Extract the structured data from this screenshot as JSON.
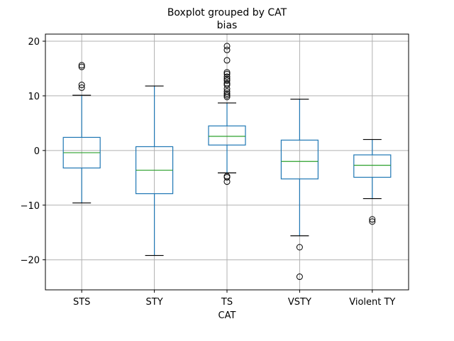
{
  "chart_data": {
    "type": "boxplot",
    "title": "Boxplot grouped by CAT",
    "subtitle": "bias",
    "xlabel": "CAT",
    "ylabel": "",
    "ylim": [
      -25.5,
      21.3
    ],
    "yticks": [
      20,
      10,
      0,
      -10,
      -20
    ],
    "ytick_labels": [
      "20",
      "10",
      "0",
      "−10",
      "−20"
    ],
    "grid": true,
    "colors": {
      "box": "#1f77b4",
      "median": "#2ca02c",
      "whisker_cap": "#000000",
      "grid": "#b0b0b0",
      "axes": "#000000"
    },
    "categories": [
      "STS",
      "STY",
      "TS",
      "VSTY",
      "Violent TY"
    ],
    "boxes": [
      {
        "category": "STS",
        "whislo": -9.6,
        "q1": -3.2,
        "med": -0.4,
        "q3": 2.4,
        "whishi": 10.1,
        "fliers": [
          15.6,
          15.3,
          12.0,
          11.5
        ]
      },
      {
        "category": "STY",
        "whislo": -19.2,
        "q1": -7.9,
        "med": -3.6,
        "q3": 0.7,
        "whishi": 11.8,
        "fliers": []
      },
      {
        "category": "TS",
        "whislo": -4.1,
        "q1": 1.0,
        "med": 2.6,
        "q3": 4.5,
        "whishi": 8.7,
        "fliers": [
          19.1,
          18.4,
          16.5,
          14.3,
          14.0,
          13.5,
          13.1,
          12.8,
          12.3,
          12.0,
          11.3,
          10.8,
          10.4,
          10.1,
          9.8,
          -4.7,
          -4.9,
          -5.7
        ]
      },
      {
        "category": "VSTY",
        "whislo": -15.6,
        "q1": -5.2,
        "med": -2.0,
        "q3": 1.9,
        "whishi": 9.4,
        "fliers": [
          -17.7,
          -23.1
        ]
      },
      {
        "category": "Violent TY",
        "whislo": -8.8,
        "q1": -4.9,
        "med": -2.7,
        "q3": -0.8,
        "whishi": 2.0,
        "fliers": [
          -12.6,
          -13.0
        ]
      }
    ]
  }
}
